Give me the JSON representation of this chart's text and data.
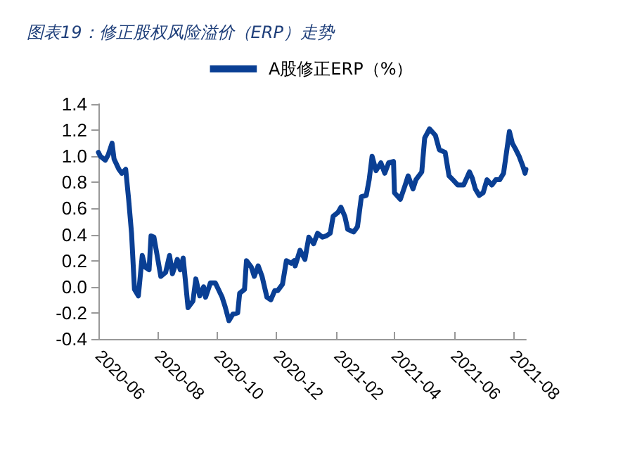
{
  "chart_data": {
    "type": "line",
    "title": "图表19：修正股权风险溢价（ERP）走势",
    "x": [
      "2020-06-01",
      "2020-06-03",
      "2020-06-08",
      "2020-06-11",
      "2020-06-15",
      "2020-06-17",
      "2020-06-22",
      "2020-06-25",
      "2020-06-29",
      "2020-07-02",
      "2020-07-05",
      "2020-07-08",
      "2020-07-12",
      "2020-07-16",
      "2020-07-19",
      "2020-07-23",
      "2020-07-25",
      "2020-07-28",
      "2020-08-01",
      "2020-08-04",
      "2020-08-09",
      "2020-08-13",
      "2020-08-16",
      "2020-08-21",
      "2020-08-24",
      "2020-08-27",
      "2020-09-01",
      "2020-09-06",
      "2020-09-09",
      "2020-09-13",
      "2020-09-17",
      "2020-09-19",
      "2020-09-24",
      "2020-09-29",
      "2020-10-06",
      "2020-10-09",
      "2020-10-13",
      "2020-10-17",
      "2020-10-22",
      "2020-10-24",
      "2020-10-29",
      "2020-10-31",
      "2020-11-05",
      "2020-11-08",
      "2020-11-12",
      "2020-11-16",
      "2020-11-21",
      "2020-11-25",
      "2020-11-29",
      "2020-12-02",
      "2020-12-07",
      "2020-12-11",
      "2020-12-16",
      "2020-12-19",
      "2020-12-20",
      "2020-12-25",
      "2020-12-30",
      "2021-01-03",
      "2021-01-08",
      "2021-01-12",
      "2021-01-17",
      "2021-01-21",
      "2021-01-25",
      "2021-01-28",
      "2021-02-02",
      "2021-02-05",
      "2021-02-09",
      "2021-02-12",
      "2021-02-18",
      "2021-02-22",
      "2021-02-26",
      "2021-03-03",
      "2021-03-06",
      "2021-03-09",
      "2021-03-13",
      "2021-03-18",
      "2021-03-22",
      "2021-03-26",
      "2021-03-31",
      "2021-04-01",
      "2021-04-07",
      "2021-04-12",
      "2021-04-15",
      "2021-04-20",
      "2021-04-23",
      "2021-04-29",
      "2021-05-02",
      "2021-05-07",
      "2021-05-13",
      "2021-05-17",
      "2021-05-23",
      "2021-05-27",
      "2021-05-31",
      "2021-06-05",
      "2021-06-11",
      "2021-06-17",
      "2021-06-20",
      "2021-06-23",
      "2021-06-27",
      "2021-07-01",
      "2021-07-05",
      "2021-07-10",
      "2021-07-14",
      "2021-07-18",
      "2021-07-22",
      "2021-07-25",
      "2021-07-28",
      "2021-07-31",
      "2021-08-03",
      "2021-08-07",
      "2021-08-11",
      "2021-08-13",
      "2021-08-14"
    ],
    "series": [
      {
        "name": "A股修正ERP（%）",
        "color": "#0a3f94",
        "values": [
          1.03,
          1.0,
          0.97,
          1.01,
          1.1,
          0.98,
          0.9,
          0.87,
          0.9,
          0.67,
          0.41,
          -0.02,
          -0.07,
          0.24,
          0.15,
          0.13,
          0.39,
          0.38,
          0.21,
          0.08,
          0.11,
          0.24,
          0.1,
          0.21,
          0.13,
          0.22,
          -0.16,
          -0.11,
          0.06,
          -0.07,
          0.0,
          -0.08,
          0.03,
          0.03,
          -0.08,
          -0.15,
          -0.26,
          -0.21,
          -0.2,
          -0.05,
          -0.02,
          0.2,
          0.15,
          0.08,
          0.16,
          0.08,
          -0.08,
          -0.1,
          -0.03,
          -0.03,
          0.02,
          0.2,
          0.18,
          0.2,
          0.16,
          0.28,
          0.21,
          0.38,
          0.33,
          0.41,
          0.38,
          0.39,
          0.41,
          0.54,
          0.57,
          0.61,
          0.54,
          0.44,
          0.42,
          0.46,
          0.69,
          0.7,
          0.82,
          1.0,
          0.89,
          0.95,
          0.87,
          0.95,
          0.96,
          0.72,
          0.67,
          0.78,
          0.85,
          0.75,
          0.82,
          0.88,
          1.14,
          1.21,
          1.16,
          1.05,
          1.03,
          0.85,
          0.82,
          0.78,
          0.78,
          0.88,
          0.83,
          0.75,
          0.7,
          0.72,
          0.82,
          0.78,
          0.82,
          0.82,
          0.87,
          1.03,
          1.19,
          1.1,
          1.06,
          1.0,
          0.92,
          0.87,
          0.9
        ]
      }
    ],
    "xlim": [
      "2020-06-01",
      "2021-08-14"
    ],
    "xticks": [
      "2020-06",
      "2020-08",
      "2020-10",
      "2020-12",
      "2021-02",
      "2021-04",
      "2021-06",
      "2021-08"
    ],
    "ylim": [
      -0.4,
      1.4
    ],
    "yticks": [
      -0.4,
      -0.2,
      {
        "value": 0,
        "label": "0.0"
      },
      0.2,
      0.4,
      0.6,
      0.8,
      {
        "value": 1,
        "label": "1.0"
      },
      1.2,
      1.4
    ],
    "grid": false,
    "legend": "top",
    "marker": "none",
    "line_style": "solid"
  }
}
